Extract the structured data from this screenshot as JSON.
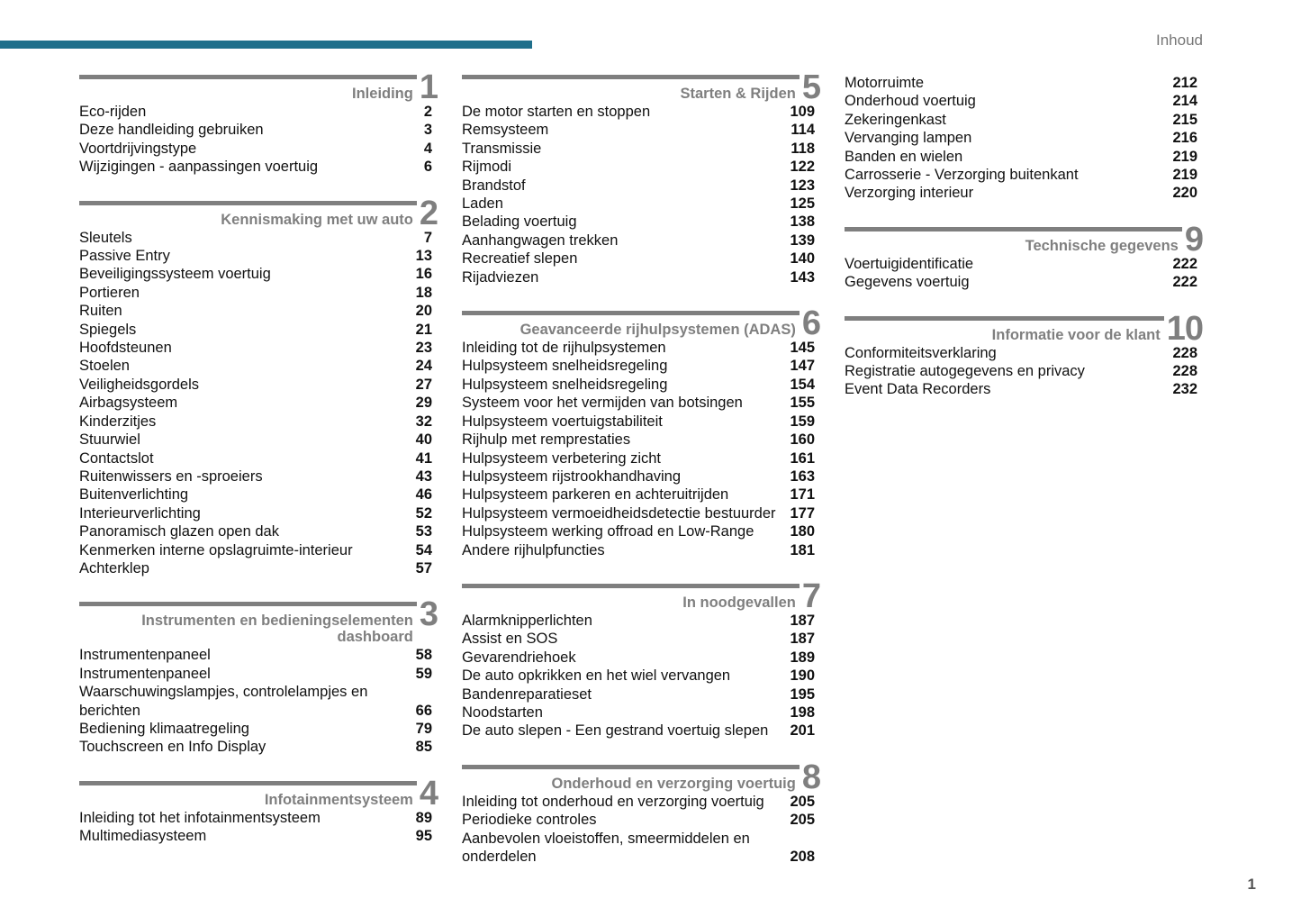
{
  "header": {
    "running_title": "Inhoud",
    "page_number": "1",
    "accent_color": "#1f6f8b"
  },
  "columns": [
    {
      "sections": [
        {
          "number": "1",
          "title": "Inleiding",
          "items": [
            {
              "label": "Eco-rijden",
              "page": "2"
            },
            {
              "label": "Deze handleiding gebruiken",
              "page": "3"
            },
            {
              "label": "Voortdrijvingstype",
              "page": "4"
            },
            {
              "label": "Wijzigingen - aanpassingen voertuig",
              "page": "6"
            }
          ]
        },
        {
          "number": "2",
          "title": "Kennismaking met uw auto",
          "items": [
            {
              "label": "Sleutels",
              "page": "7"
            },
            {
              "label": "Passive Entry",
              "page": "13"
            },
            {
              "label": "Beveiligingssysteem voertuig",
              "page": "16"
            },
            {
              "label": "Portieren",
              "page": "18"
            },
            {
              "label": "Ruiten",
              "page": "20"
            },
            {
              "label": "Spiegels",
              "page": "21"
            },
            {
              "label": "Hoofdsteunen",
              "page": "23"
            },
            {
              "label": "Stoelen",
              "page": "24"
            },
            {
              "label": "Veiligheidsgordels",
              "page": "27"
            },
            {
              "label": "Airbagsysteem",
              "page": "29"
            },
            {
              "label": "Kinderzitjes",
              "page": "32"
            },
            {
              "label": "Stuurwiel",
              "page": "40"
            },
            {
              "label": "Contactslot",
              "page": "41"
            },
            {
              "label": "Ruitenwissers en -sproeiers",
              "page": "43"
            },
            {
              "label": "Buitenverlichting",
              "page": "46"
            },
            {
              "label": "Interieurverlichting",
              "page": "52"
            },
            {
              "label": "Panoramisch glazen open dak",
              "page": "53"
            },
            {
              "label": "Kenmerken interne opslagruimte-interieur",
              "page": "54"
            },
            {
              "label": "Achterklep",
              "page": "57"
            }
          ]
        },
        {
          "number": "3",
          "title": "Instrumenten en bedieningselementen dashboard",
          "items": [
            {
              "label": "Instrumentenpaneel",
              "page": "58"
            },
            {
              "label": "Instrumentenpaneel",
              "page": "59"
            },
            {
              "label": "Waarschuwingslampjes, controlelampjes en berichten",
              "page": "66"
            },
            {
              "label": "Bediening klimaatregeling",
              "page": "79"
            },
            {
              "label": "Touchscreen en Info Display",
              "page": "85"
            }
          ]
        },
        {
          "number": "4",
          "title": "Infotainmentsysteem",
          "items": [
            {
              "label": "Inleiding tot het infotainmentsysteem",
              "page": "89"
            },
            {
              "label": "Multimediasysteem",
              "page": "95"
            }
          ]
        }
      ]
    },
    {
      "sections": [
        {
          "number": "5",
          "title": "Starten & Rijden",
          "items": [
            {
              "label": "De motor starten en stoppen",
              "page": "109"
            },
            {
              "label": "Remsysteem",
              "page": "114"
            },
            {
              "label": "Transmissie",
              "page": "118"
            },
            {
              "label": "Rijmodi",
              "page": "122"
            },
            {
              "label": "Brandstof",
              "page": "123"
            },
            {
              "label": "Laden",
              "page": "125"
            },
            {
              "label": "Belading voertuig",
              "page": "138"
            },
            {
              "label": "Aanhangwagen trekken",
              "page": "139"
            },
            {
              "label": "Recreatief slepen",
              "page": "140"
            },
            {
              "label": "Rijadviezen",
              "page": "143"
            }
          ]
        },
        {
          "number": "6",
          "title": "Geavanceerde rijhulpsystemen (ADAS)",
          "items": [
            {
              "label": "Inleiding tot de rijhulpsystemen",
              "page": "145"
            },
            {
              "label": "Hulpsysteem snelheidsregeling",
              "page": "147"
            },
            {
              "label": "Hulpsysteem snelheidsregeling",
              "page": "154"
            },
            {
              "label": "Systeem voor het vermijden van botsingen",
              "page": "155"
            },
            {
              "label": "Hulpsysteem voertuigstabiliteit",
              "page": "159"
            },
            {
              "label": "Rijhulp met remprestaties",
              "page": "160"
            },
            {
              "label": "Hulpsysteem verbetering zicht",
              "page": "161"
            },
            {
              "label": "Hulpsysteem rijstrookhandhaving",
              "page": "163"
            },
            {
              "label": "Hulpsysteem parkeren en achteruitrijden",
              "page": "171"
            },
            {
              "label": "Hulpsysteem vermoeidheidsdetectie bestuurder",
              "page": "177"
            },
            {
              "label": "Hulpsysteem werking offroad en Low-Range",
              "page": "180"
            },
            {
              "label": "Andere rijhulpfuncties",
              "page": "181"
            }
          ]
        },
        {
          "number": "7",
          "title": "In noodgevallen",
          "items": [
            {
              "label": "Alarmknipperlichten",
              "page": "187"
            },
            {
              "label": "Assist en SOS",
              "page": "187"
            },
            {
              "label": "Gevarendriehoek",
              "page": "189"
            },
            {
              "label": "De auto opkrikken en het wiel vervangen",
              "page": "190"
            },
            {
              "label": "Bandenreparatieset",
              "page": "195"
            },
            {
              "label": "Noodstarten",
              "page": "198"
            },
            {
              "label": "De auto slepen - Een gestrand voertuig slepen",
              "page": "201"
            }
          ]
        },
        {
          "number": "8",
          "title": "Onderhoud en verzorging voertuig",
          "items": [
            {
              "label": "Inleiding tot onderhoud en verzorging voertuig",
              "page": "205"
            },
            {
              "label": "Periodieke controles",
              "page": "205"
            },
            {
              "label": "Aanbevolen vloeistoffen, smeermiddelen en onderdelen",
              "page": "208"
            }
          ]
        }
      ]
    },
    {
      "sections": [
        {
          "number": "",
          "title": "",
          "items": [
            {
              "label": "Motorruimte",
              "page": "212"
            },
            {
              "label": "Onderhoud voertuig",
              "page": "214"
            },
            {
              "label": "Zekeringenkast",
              "page": "215"
            },
            {
              "label": "Vervanging lampen",
              "page": "216"
            },
            {
              "label": "Banden en wielen",
              "page": "219"
            },
            {
              "label": "Carrosserie - Verzorging buitenkant",
              "page": "219"
            },
            {
              "label": "Verzorging interieur",
              "page": "220"
            }
          ]
        },
        {
          "number": "9",
          "title": "Technische gegevens",
          "items": [
            {
              "label": "Voertuigidentificatie",
              "page": "222"
            },
            {
              "label": "Gegevens voertuig",
              "page": "222"
            }
          ]
        },
        {
          "number": "10",
          "title": "Informatie voor de klant",
          "items": [
            {
              "label": "Conformiteitsverklaring",
              "page": "228"
            },
            {
              "label": "Registratie autogegevens en privacy",
              "page": "228"
            },
            {
              "label": "Event Data Recorders",
              "page": "232"
            }
          ]
        }
      ]
    }
  ]
}
